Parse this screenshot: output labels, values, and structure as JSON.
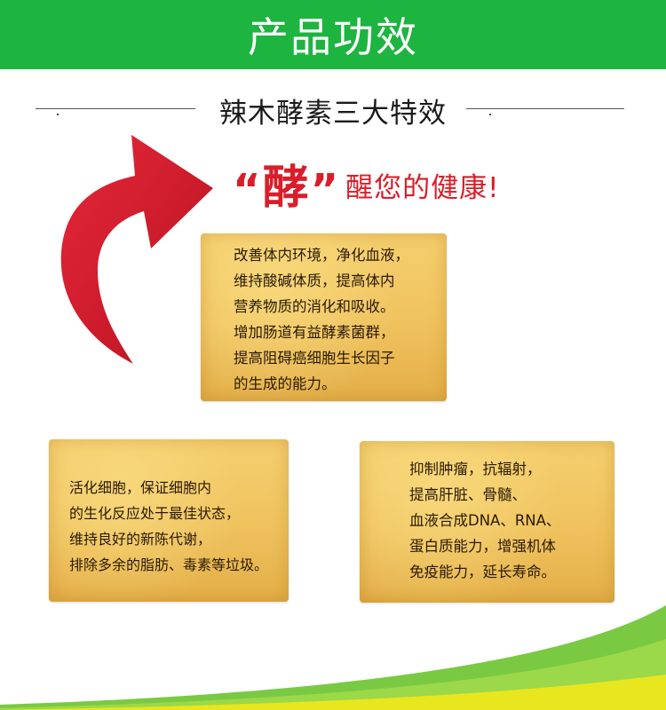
{
  "header": {
    "title": "产品功效"
  },
  "section": {
    "title": "辣木酵素三大特效"
  },
  "slogan": {
    "open_quote": "“",
    "key_char": "酵",
    "close_quote": "”",
    "rest": "醒您的健康!"
  },
  "cards": [
    {
      "lines": [
        "改善体内环境，净化血液，",
        "维持酸碱体质，提高体内",
        "营养物质的消化和吸收。",
        "增加肠道有益酵素菌群，",
        "提高阻碍癌细胞生长因子",
        "的生成的能力。"
      ]
    },
    {
      "lines": [
        "活化细胞，保证细胞内",
        "的生化反应处于最佳状态，",
        "维持良好的新陈代谢，",
        "排除多余的脂肪、毒素等垃圾。"
      ]
    },
    {
      "lines": [
        "抑制肿瘤，抗辐射，",
        "提高肝脏、骨髓、",
        "血液合成DNA、RNA、",
        "蛋白质能力，增强机体",
        "免疫能力，延长寿命。"
      ]
    }
  ],
  "colors": {
    "header_green": "#1db440",
    "accent_red": "#d91e2a",
    "card_gold": "#efc25e",
    "deco_green": "#7ac943",
    "deco_yellow": "#e8e61e"
  },
  "icons": {
    "arrow": "curved-red-arrow-icon"
  }
}
